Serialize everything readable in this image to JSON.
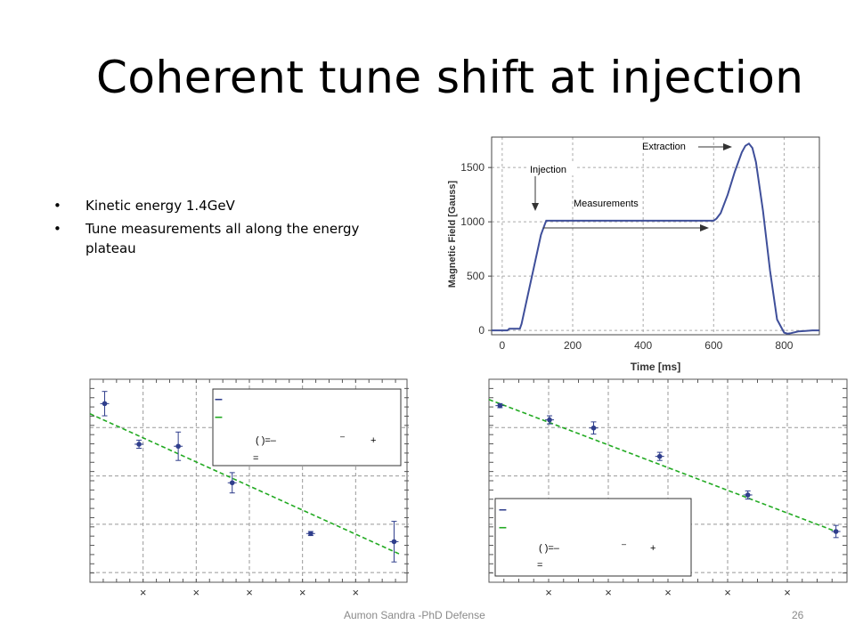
{
  "slide": {
    "title": "Coherent tune shift at injection",
    "bullets": [
      "Kinetic energy 1.4GeV",
      "Tune measurements all along the energy plateau"
    ],
    "footer_text": "Aumon Sandra -PhD Defense",
    "page_number": "26"
  },
  "chart_data": [
    {
      "type": "line",
      "xlabel": "Time [ms]",
      "ylabel": "Magnetic Field [Gauss]",
      "xlim": [
        -30,
        900
      ],
      "ylim": [
        -40,
        1780
      ],
      "xticks": [
        "0",
        "200",
        "400",
        "600",
        "800"
      ],
      "yticks": [
        "0",
        "500",
        "1000",
        "1500"
      ],
      "grid": true,
      "annotations": [
        "Injection",
        "Measurements",
        "Extraction"
      ],
      "series": [
        {
          "x": [
            -30,
            15,
            20,
            50,
            55,
            110,
            120,
            125,
            300,
            600,
            608,
            620,
            640,
            660,
            680,
            690,
            700,
            710,
            720,
            740,
            760,
            780,
            800,
            810,
            820,
            840,
            860,
            880,
            900
          ],
          "y": [
            0,
            0,
            15,
            15,
            60,
            880,
            970,
            1010,
            1010,
            1010,
            1030,
            1080,
            1250,
            1460,
            1640,
            1700,
            1720,
            1680,
            1550,
            1100,
            550,
            100,
            -20,
            -30,
            -25,
            -10,
            -5,
            0,
            0
          ]
        }
      ],
      "line_color": "#3f4f9a"
    },
    {
      "type": "scatter",
      "xticks": [
        "×",
        "×",
        "×",
        "×",
        "×"
      ],
      "grid": true,
      "legend": {
        "placement": "top-right",
        "lines": [
          "–",
          "–",
          "(    )=–",
          "–",
          "+",
          "="
        ]
      },
      "xlim": [
        0,
        6.5
      ],
      "ylim": [
        0,
        10
      ],
      "points": [
        {
          "x": 0.3,
          "y": 8.8,
          "err": 0.6
        },
        {
          "x": 1.0,
          "y": 6.8,
          "err": 0.2
        },
        {
          "x": 1.8,
          "y": 6.7,
          "err": 0.7
        },
        {
          "x": 2.9,
          "y": 4.9,
          "err": 0.5
        },
        {
          "x": 4.5,
          "y": 2.4,
          "err": 0.1
        },
        {
          "x": 6.2,
          "y": 2.0,
          "err": 1.0
        }
      ],
      "fit": {
        "x": [
          0.0,
          6.3
        ],
        "y": [
          8.3,
          1.4
        ]
      },
      "marker_color": "#2f3e8c",
      "fit_color": "#22aa22"
    },
    {
      "type": "scatter",
      "xticks": [
        "×",
        "×",
        "×",
        "×",
        "×"
      ],
      "grid": true,
      "legend": {
        "placement": "bottom-left",
        "lines": [
          "–",
          "–",
          "(    )=–",
          "–",
          "+",
          "="
        ]
      },
      "xlim": [
        0,
        6.5
      ],
      "ylim": [
        0,
        10
      ],
      "points": [
        {
          "x": 0.2,
          "y": 8.7,
          "err": 0.1
        },
        {
          "x": 1.1,
          "y": 8.0,
          "err": 0.2
        },
        {
          "x": 1.9,
          "y": 7.6,
          "err": 0.3
        },
        {
          "x": 3.1,
          "y": 6.2,
          "err": 0.2
        },
        {
          "x": 4.7,
          "y": 4.3,
          "err": 0.2
        },
        {
          "x": 6.3,
          "y": 2.5,
          "err": 0.3
        }
      ],
      "fit": {
        "x": [
          0.0,
          6.3
        ],
        "y": [
          9.0,
          2.5
        ]
      },
      "marker_color": "#2f3e8c",
      "fit_color": "#22aa22"
    }
  ]
}
